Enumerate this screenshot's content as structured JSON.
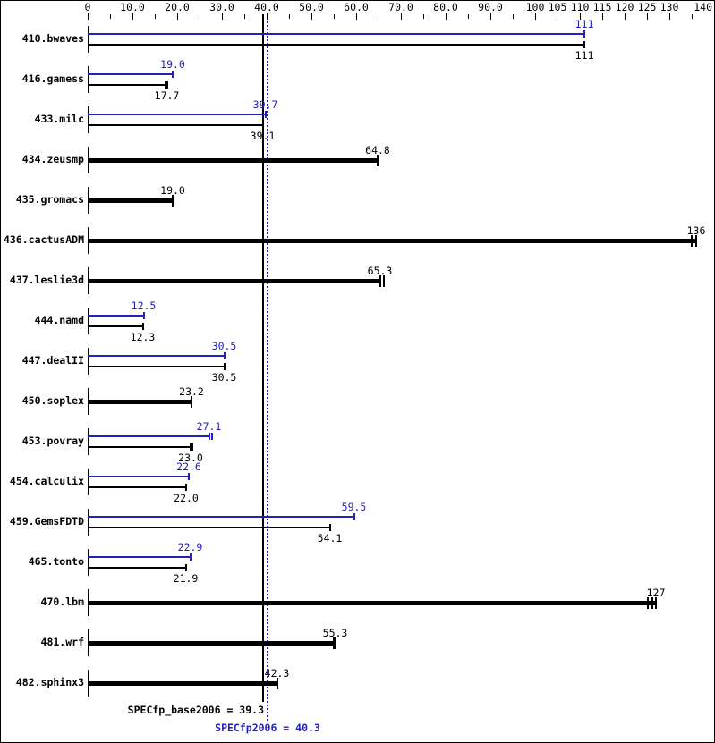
{
  "summary": {
    "base_text": "SPECfp_base2006 = 39.3",
    "peak_text": "SPECfp2006 = 40.3"
  },
  "colors": {
    "peak_blue": "#2222bb",
    "base_black": "#000000",
    "background": "#ffffff"
  },
  "chart_data": {
    "type": "bar",
    "orientation": "horizontal",
    "title": "",
    "xlabel": "",
    "ylabel": "",
    "xlim": [
      0,
      140
    ],
    "grid": false,
    "legend_position": "none",
    "series": [
      {
        "name": "SPECfp2006 (peak)",
        "color": "#2222bb"
      },
      {
        "name": "SPECfp_base2006 (base)",
        "color": "#000000"
      }
    ],
    "axis_ticks": [
      {
        "value": 0,
        "label": "0"
      },
      {
        "value": 5
      },
      {
        "value": 10,
        "label": "10.0"
      },
      {
        "value": 15
      },
      {
        "value": 20,
        "label": "20.0"
      },
      {
        "value": 25
      },
      {
        "value": 30,
        "label": "30.0"
      },
      {
        "value": 35
      },
      {
        "value": 40,
        "label": "40.0"
      },
      {
        "value": 45
      },
      {
        "value": 50,
        "label": "50.0"
      },
      {
        "value": 55
      },
      {
        "value": 60,
        "label": "60.0"
      },
      {
        "value": 65
      },
      {
        "value": 70,
        "label": "70.0"
      },
      {
        "value": 75
      },
      {
        "value": 80,
        "label": "80.0"
      },
      {
        "value": 85
      },
      {
        "value": 90,
        "label": "90.0"
      },
      {
        "value": 95
      },
      {
        "value": 100,
        "label": "100"
      },
      {
        "value": 105,
        "label": "105"
      },
      {
        "value": 110,
        "label": "110"
      },
      {
        "value": 115,
        "label": "115"
      },
      {
        "value": 120,
        "label": "120"
      },
      {
        "value": 125,
        "label": "125"
      },
      {
        "value": 130,
        "label": "130"
      },
      {
        "value": 135
      },
      {
        "value": 140,
        "label": "140"
      }
    ],
    "benchmarks": [
      {
        "name": "410.bwaves",
        "peak": 111,
        "peak_label": "111",
        "base": 111,
        "base_label": "111"
      },
      {
        "name": "416.gamess",
        "peak": 19.0,
        "peak_label": "19.0",
        "base": 17.7,
        "base_label": "17.7",
        "base_ticks": [
          17.4,
          17.7
        ]
      },
      {
        "name": "433.milc",
        "peak": 39.7,
        "peak_label": "39.7",
        "base": 39.1,
        "base_label": "39.1"
      },
      {
        "name": "434.zeusmp",
        "peak": null,
        "base": 64.8,
        "base_label": "64.8"
      },
      {
        "name": "435.gromacs",
        "peak": null,
        "base": 19.0,
        "base_label": "19.0"
      },
      {
        "name": "436.cactusADM",
        "peak": null,
        "base": 136,
        "base_label": "136",
        "base_ticks": [
          135.0,
          136.0
        ]
      },
      {
        "name": "437.leslie3d",
        "peak": null,
        "base": 65.3,
        "base_label": "65.3",
        "base_ticks": [
          65.3,
          66.1
        ]
      },
      {
        "name": "444.namd",
        "peak": 12.5,
        "peak_label": "12.5",
        "base": 12.3,
        "base_label": "12.3"
      },
      {
        "name": "447.dealII",
        "peak": 30.5,
        "peak_label": "30.5",
        "base": 30.5,
        "base_label": "30.5"
      },
      {
        "name": "450.soplex",
        "peak": null,
        "base": 23.2,
        "base_label": "23.2"
      },
      {
        "name": "453.povray",
        "peak": 27.1,
        "peak_label": "27.1",
        "peak_ticks": [
          27.1,
          27.7
        ],
        "base": 23.0,
        "base_label": "23.0",
        "base_ticks": [
          23.0,
          23.4
        ]
      },
      {
        "name": "454.calculix",
        "peak": 22.6,
        "peak_label": "22.6",
        "base": 22.0,
        "base_label": "22.0"
      },
      {
        "name": "459.GemsFDTD",
        "peak": 59.5,
        "peak_label": "59.5",
        "base": 54.1,
        "base_label": "54.1"
      },
      {
        "name": "465.tonto",
        "peak": 22.9,
        "peak_label": "22.9",
        "base": 21.9,
        "base_label": "21.9"
      },
      {
        "name": "470.lbm",
        "peak": null,
        "base": 127,
        "base_label": "127",
        "base_ticks": [
          125.2,
          126.1,
          127.0
        ]
      },
      {
        "name": "481.wrf",
        "peak": null,
        "base": 55.3,
        "base_label": "55.3",
        "base_ticks": [
          54.9,
          55.3
        ]
      },
      {
        "name": "482.sphinx3",
        "peak": null,
        "base": 42.3,
        "base_label": "42.3"
      }
    ],
    "reference_lines": [
      {
        "name": "SPECfp_base2006",
        "value": 39.3,
        "style": "solid",
        "color": "#000000",
        "label": "SPECfp_base2006 = 39.3"
      },
      {
        "name": "SPECfp2006",
        "value": 40.3,
        "style": "dotted",
        "color": "#2222bb",
        "label": "SPECfp2006 = 40.3"
      }
    ]
  }
}
